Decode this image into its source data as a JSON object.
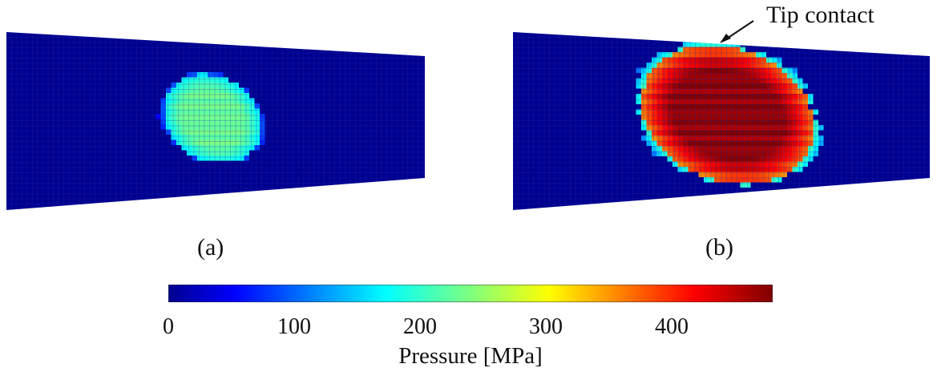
{
  "chart_data": [
    {
      "type": "heatmap",
      "panel_label": "(a)",
      "annotation": "",
      "description_values": {
        "background_pressure": 0,
        "peak_pressure": 230,
        "typical_pressure": 200
      }
    },
    {
      "type": "heatmap",
      "panel_label": "(b)",
      "annotation": "Tip contact",
      "description_values": {
        "background_pressure": 0,
        "peak_pressure": 470,
        "typical_pressure": 410
      }
    }
  ],
  "colorbar": {
    "title": "Pressure [MPa]",
    "ticks": [
      "0",
      "100",
      "200",
      "300",
      "400"
    ],
    "min": 0,
    "max": 480,
    "colormap": "jet"
  },
  "colors": {
    "background_blue": "#00008f",
    "grid_line": "#1b2fb0"
  }
}
